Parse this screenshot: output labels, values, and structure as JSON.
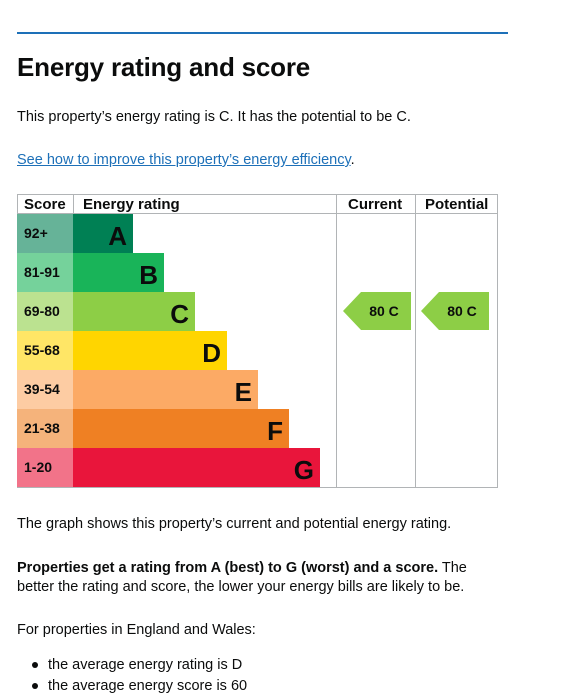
{
  "section": {
    "title": "Energy rating and score",
    "intro": "This property’s energy rating is C. It has the potential to be C.",
    "link_text": "See how to improve this property’s energy efficiency",
    "link_suffix": "."
  },
  "chart": {
    "headers": {
      "score": "Score",
      "rating": "Energy rating",
      "current": "Current",
      "potential": "Potential"
    },
    "bands": [
      {
        "range": "92+",
        "letter": "A",
        "color": "#008054",
        "score_bg": "#66b398"
      },
      {
        "range": "81-91",
        "letter": "B",
        "color": "#19b459",
        "score_bg": "#75d29b"
      },
      {
        "range": "69-80",
        "letter": "C",
        "color": "#8dce46",
        "score_bg": "#bbe290"
      },
      {
        "range": "55-68",
        "letter": "D",
        "color": "#ffd500",
        "score_bg": "#ffe666"
      },
      {
        "range": "39-54",
        "letter": "E",
        "color": "#fcaa65",
        "score_bg": "#fdcca3"
      },
      {
        "range": "21-38",
        "letter": "F",
        "color": "#ef8023",
        "score_bg": "#f5b37b"
      },
      {
        "range": "1-20",
        "letter": "G",
        "color": "#e9153b",
        "score_bg": "#f27389"
      }
    ],
    "current": {
      "label": "80 C",
      "band": "C",
      "color": "#8dce46"
    },
    "potential": {
      "label": "80 C",
      "band": "C",
      "color": "#8dce46"
    }
  },
  "chart_data": {
    "type": "bar",
    "categories": [
      "A",
      "B",
      "C",
      "D",
      "E",
      "F",
      "G"
    ],
    "score_ranges": [
      "92+",
      "81-91",
      "69-80",
      "55-68",
      "39-54",
      "21-38",
      "1-20"
    ],
    "current": {
      "score": 80,
      "rating": "C"
    },
    "potential": {
      "score": 80,
      "rating": "C"
    }
  },
  "body": {
    "graph_note": "The graph shows this property’s current and potential energy rating.",
    "bold_text": "Properties get a rating from A (best) to G (worst) and a score.",
    "rest_text": " The better the rating and score, the lower your energy bills are likely to be.",
    "region_note": "For properties in England and Wales:",
    "bullets": [
      "the average energy rating is D",
      "the average energy score is 60"
    ]
  }
}
